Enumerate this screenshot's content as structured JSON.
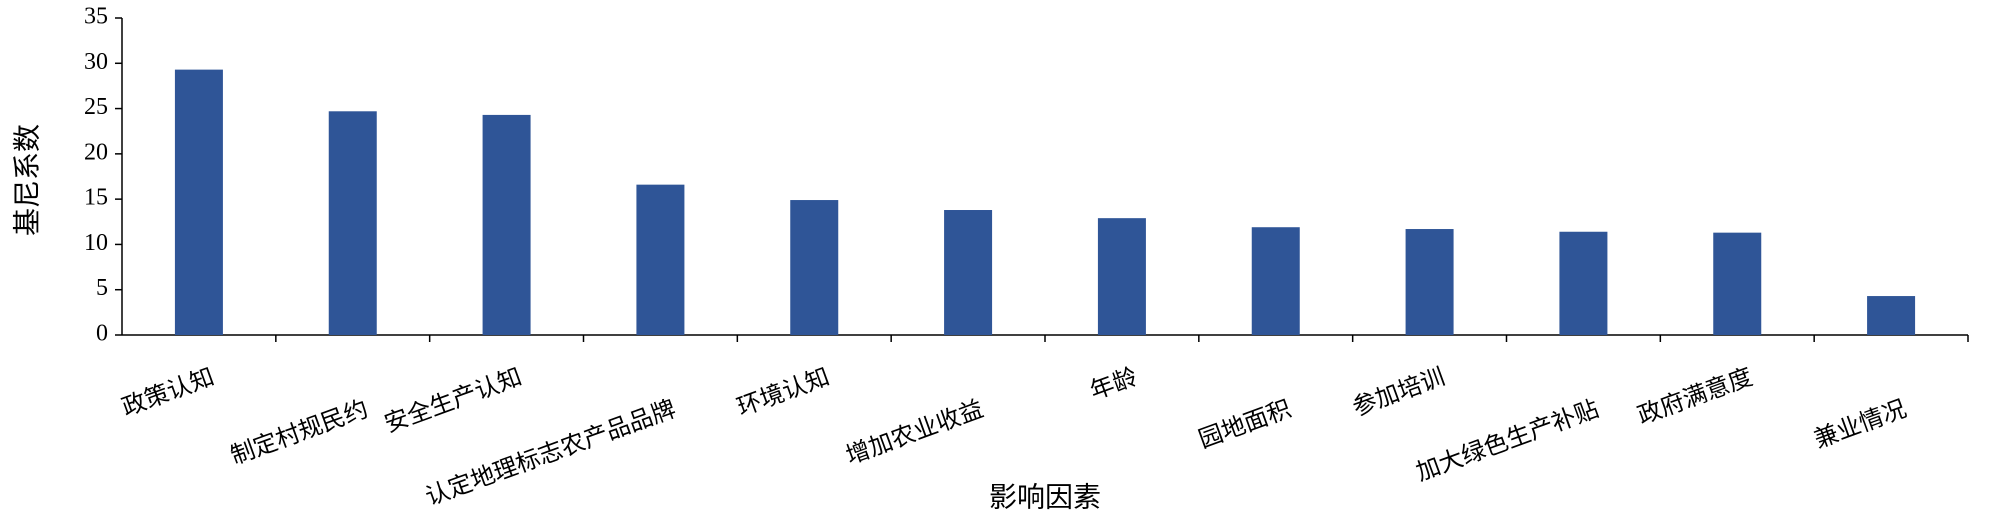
{
  "chart_data": {
    "type": "bar",
    "x_label": "影响因素",
    "y_label": "基尼系数",
    "categories": [
      "政策认知",
      "制定村规民约",
      "安全生产认知",
      "认定地理标志农产品品牌",
      "环境认知",
      "增加农业收益",
      "年龄",
      "园地面积",
      "参加培训",
      "加大绿色生产补贴",
      "政府满意度",
      "兼业情况"
    ],
    "values": [
      29.3,
      24.7,
      24.3,
      16.6,
      14.9,
      13.8,
      12.9,
      11.9,
      11.7,
      11.4,
      11.3,
      4.3
    ],
    "color": "#2f5597",
    "ylim": [
      0,
      35
    ],
    "yticks": [
      0,
      5,
      10,
      15,
      20,
      25,
      30,
      35
    ],
    "grid": false
  }
}
